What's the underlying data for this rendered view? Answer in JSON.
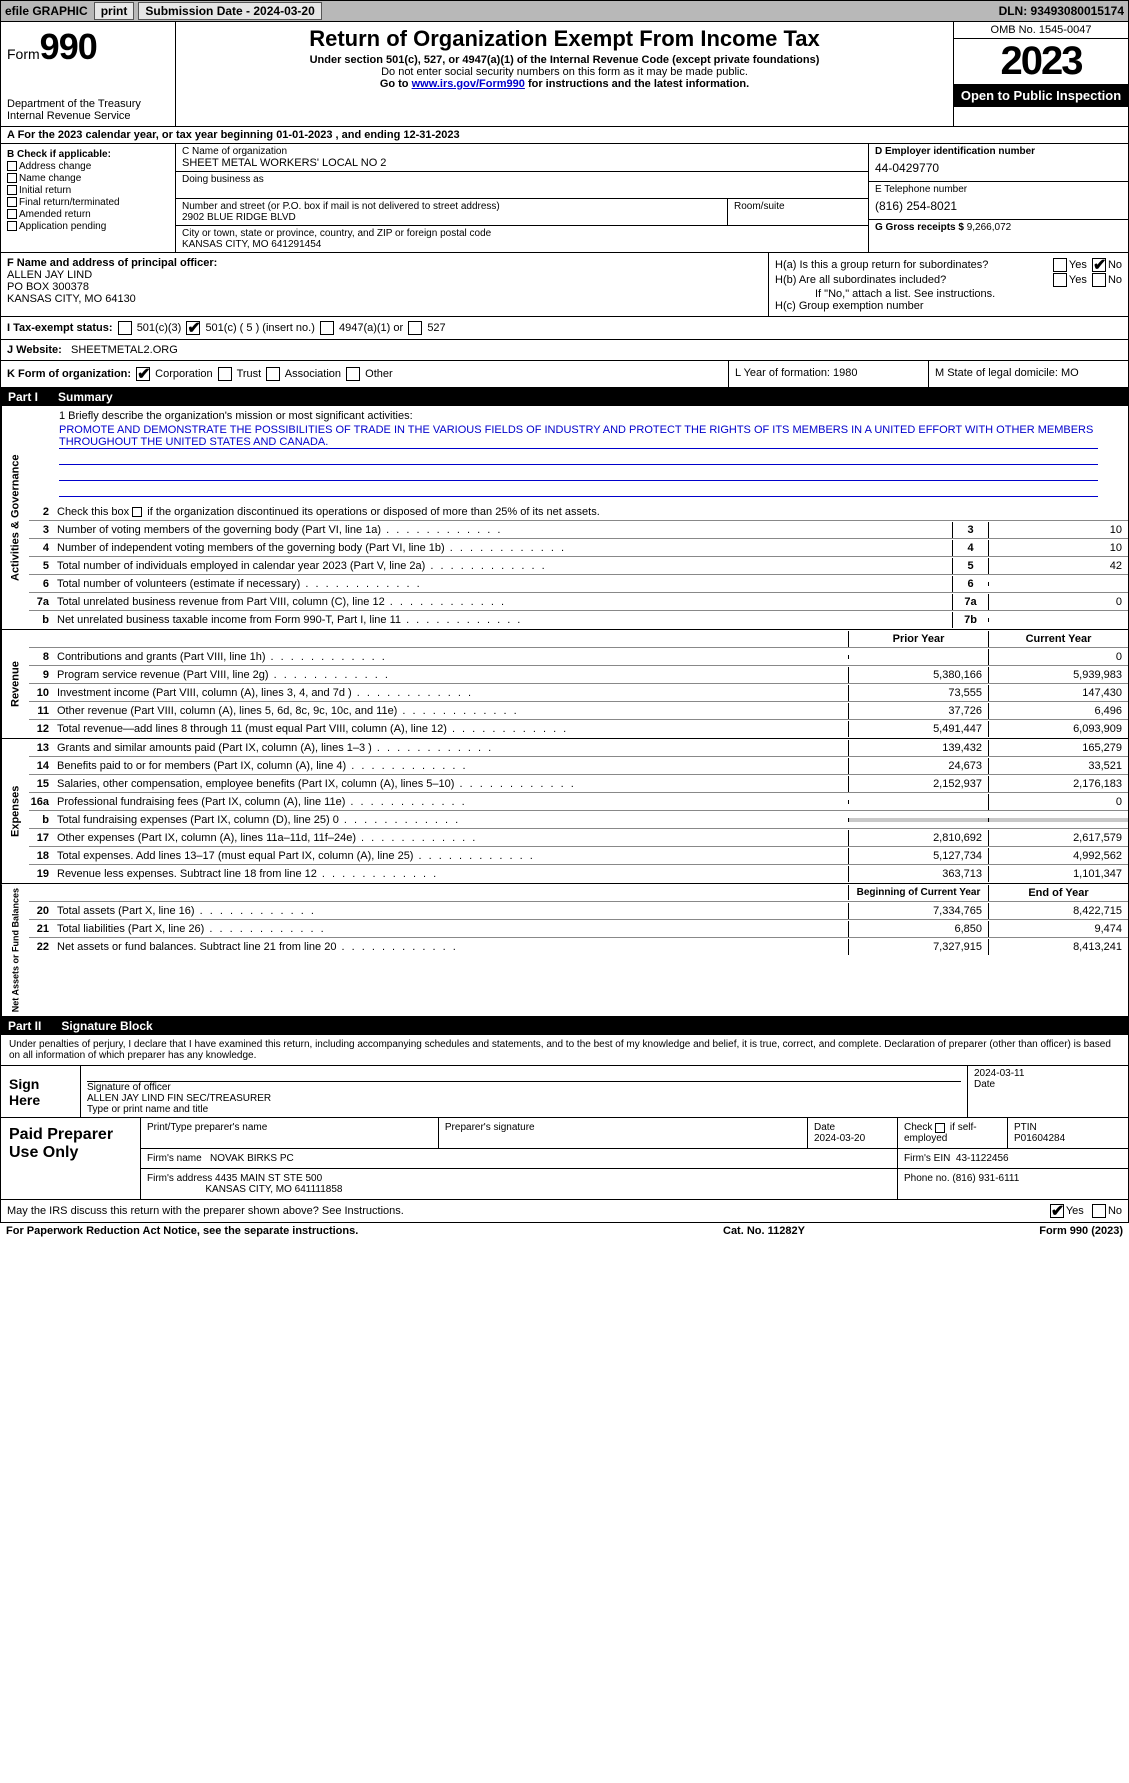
{
  "topbar": {
    "efile": "efile GRAPHIC",
    "print": "print",
    "sub_label": "Submission Date - 2024-03-20",
    "dln_label": "DLN: 93493080015174"
  },
  "header": {
    "form": "Form",
    "form_no": "990",
    "dept": "Department of the Treasury\nInternal Revenue Service",
    "title": "Return of Organization Exempt From Income Tax",
    "sub1": "Under section 501(c), 527, or 4947(a)(1) of the Internal Revenue Code (except private foundations)",
    "sub2": "Do not enter social security numbers on this form as it may be made public.",
    "sub3_pre": "Go to ",
    "sub3_link": "www.irs.gov/Form990",
    "sub3_post": " for instructions and the latest information.",
    "omb": "OMB No. 1545-0047",
    "year": "2023",
    "public": "Open to Public Inspection"
  },
  "rowA": "A  For the 2023 calendar year, or tax year beginning 01-01-2023    , and ending 12-31-2023",
  "boxB": {
    "label": "B Check if applicable:",
    "items": [
      "Address change",
      "Name change",
      "Initial return",
      "Final return/terminated",
      "Amended return",
      "Application pending"
    ]
  },
  "boxC": {
    "name_lbl": "C Name of organization",
    "name": "SHEET METAL WORKERS' LOCAL NO 2",
    "dba_lbl": "Doing business as",
    "addr_lbl": "Number and street (or P.O. box if mail is not delivered to street address)",
    "addr": "2902 BLUE RIDGE BLVD",
    "room_lbl": "Room/suite",
    "city_lbl": "City or town, state or province, country, and ZIP or foreign postal code",
    "city": "KANSAS CITY, MO  641291454"
  },
  "boxD": {
    "lbl": "D Employer identification number",
    "val": "44-0429770"
  },
  "boxE": {
    "lbl": "E Telephone number",
    "val": "(816) 254-8021"
  },
  "boxG": {
    "lbl": "G Gross receipts $",
    "val": "9,266,072"
  },
  "boxF": {
    "lbl": "F  Name and address of principal officer:",
    "name": "ALLEN JAY LIND",
    "addr1": "PO BOX 300378",
    "addr2": "KANSAS CITY, MO  64130"
  },
  "boxH": {
    "ha": "H(a)  Is this a group return for subordinates?",
    "hb": "H(b)  Are all subordinates included?",
    "hb_note": "If \"No,\" attach a list. See instructions.",
    "hc": "H(c)  Group exemption number",
    "yes": "Yes",
    "no": "No"
  },
  "rowI": {
    "lbl": "I    Tax-exempt status:",
    "o1": "501(c)(3)",
    "o2": "501(c) ( 5 ) (insert no.)",
    "o3": "4947(a)(1) or",
    "o4": "527"
  },
  "rowJ": {
    "lbl": "J    Website:",
    "val": "SHEETMETAL2.ORG"
  },
  "rowK": {
    "lbl": "K Form of organization:",
    "o1": "Corporation",
    "o2": "Trust",
    "o3": "Association",
    "o4": "Other",
    "L": "L Year of formation: 1980",
    "M": "M State of legal domicile: MO"
  },
  "part1": {
    "no": "Part I",
    "title": "Summary"
  },
  "mission": {
    "lbl": "1   Briefly describe the organization's mission or most significant activities:",
    "text": "PROMOTE AND DEMONSTRATE THE POSSIBILITIES OF TRADE IN THE VARIOUS FIELDS OF INDUSTRY AND PROTECT THE RIGHTS OF ITS MEMBERS IN A UNITED EFFORT WITH OTHER MEMBERS THROUGHOUT THE UNITED STATES AND CANADA."
  },
  "gov": {
    "vlabel": "Activities & Governance",
    "l2": "Check this box       if the organization discontinued its operations or disposed of more than 25% of its net assets.",
    "lines": [
      {
        "n": "3",
        "d": "Number of voting members of the governing body (Part VI, line 1a)",
        "box": "3",
        "v": "10"
      },
      {
        "n": "4",
        "d": "Number of independent voting members of the governing body (Part VI, line 1b)",
        "box": "4",
        "v": "10"
      },
      {
        "n": "5",
        "d": "Total number of individuals employed in calendar year 2023 (Part V, line 2a)",
        "box": "5",
        "v": "42"
      },
      {
        "n": "6",
        "d": "Total number of volunteers (estimate if necessary)",
        "box": "6",
        "v": ""
      },
      {
        "n": "7a",
        "d": "Total unrelated business revenue from Part VIII, column (C), line 12",
        "box": "7a",
        "v": "0"
      },
      {
        "n": "b",
        "d": "Net unrelated business taxable income from Form 990-T, Part I, line 11",
        "box": "7b",
        "v": ""
      }
    ]
  },
  "rev": {
    "vlabel": "Revenue",
    "hdr_prior": "Prior Year",
    "hdr_curr": "Current Year",
    "lines": [
      {
        "n": "8",
        "d": "Contributions and grants (Part VIII, line 1h)",
        "p": "",
        "c": "0"
      },
      {
        "n": "9",
        "d": "Program service revenue (Part VIII, line 2g)",
        "p": "5,380,166",
        "c": "5,939,983"
      },
      {
        "n": "10",
        "d": "Investment income (Part VIII, column (A), lines 3, 4, and 7d )",
        "p": "73,555",
        "c": "147,430"
      },
      {
        "n": "11",
        "d": "Other revenue (Part VIII, column (A), lines 5, 6d, 8c, 9c, 10c, and 11e)",
        "p": "37,726",
        "c": "6,496"
      },
      {
        "n": "12",
        "d": "Total revenue—add lines 8 through 11 (must equal Part VIII, column (A), line 12)",
        "p": "5,491,447",
        "c": "6,093,909"
      }
    ]
  },
  "exp": {
    "vlabel": "Expenses",
    "lines": [
      {
        "n": "13",
        "d": "Grants and similar amounts paid (Part IX, column (A), lines 1–3 )",
        "p": "139,432",
        "c": "165,279"
      },
      {
        "n": "14",
        "d": "Benefits paid to or for members (Part IX, column (A), line 4)",
        "p": "24,673",
        "c": "33,521"
      },
      {
        "n": "15",
        "d": "Salaries, other compensation, employee benefits (Part IX, column (A), lines 5–10)",
        "p": "2,152,937",
        "c": "2,176,183"
      },
      {
        "n": "16a",
        "d": "Professional fundraising fees (Part IX, column (A), line 11e)",
        "p": "",
        "c": "0"
      },
      {
        "n": "b",
        "d": "Total fundraising expenses (Part IX, column (D), line 25) 0",
        "p": "",
        "c": "",
        "shaded": true
      },
      {
        "n": "17",
        "d": "Other expenses (Part IX, column (A), lines 11a–11d, 11f–24e)",
        "p": "2,810,692",
        "c": "2,617,579"
      },
      {
        "n": "18",
        "d": "Total expenses. Add lines 13–17 (must equal Part IX, column (A), line 25)",
        "p": "5,127,734",
        "c": "4,992,562"
      },
      {
        "n": "19",
        "d": "Revenue less expenses. Subtract line 18 from line 12",
        "p": "363,713",
        "c": "1,101,347"
      }
    ]
  },
  "net": {
    "vlabel": "Net Assets or Fund Balances",
    "hdr_prior": "Beginning of Current Year",
    "hdr_curr": "End of Year",
    "lines": [
      {
        "n": "20",
        "d": "Total assets (Part X, line 16)",
        "p": "7,334,765",
        "c": "8,422,715"
      },
      {
        "n": "21",
        "d": "Total liabilities (Part X, line 26)",
        "p": "6,850",
        "c": "9,474"
      },
      {
        "n": "22",
        "d": "Net assets or fund balances. Subtract line 21 from line 20",
        "p": "7,327,915",
        "c": "8,413,241"
      }
    ]
  },
  "part2": {
    "no": "Part II",
    "title": "Signature Block"
  },
  "sig": {
    "intro": "Under penalties of perjury, I declare that I have examined this return, including accompanying schedules and statements, and to the best of my knowledge and belief, it is true, correct, and complete. Declaration of preparer (other than officer) is based on all information of which preparer has any knowledge.",
    "sign_here": "Sign Here",
    "sig_lbl": "Signature of officer",
    "date_lbl": "Date",
    "date": "2024-03-11",
    "name": "ALLEN JAY LIND  FIN SEC/TREASURER",
    "name_lbl": "Type or print name and title"
  },
  "prep": {
    "label": "Paid Preparer Use Only",
    "h1": "Print/Type preparer's name",
    "h2": "Preparer's signature",
    "h3": "Date",
    "h3v": "2024-03-20",
    "h4_pre": "Check",
    "h4_post": "if self-employed",
    "h5": "PTIN",
    "h5v": "P01604284",
    "firm_lbl": "Firm's name",
    "firm": "NOVAK BIRKS PC",
    "ein_lbl": "Firm's EIN",
    "ein": "43-1122456",
    "addr_lbl": "Firm's address",
    "addr1": "4435 MAIN ST STE 500",
    "addr2": "KANSAS CITY, MO  641111858",
    "phone_lbl": "Phone no.",
    "phone": "(816) 931-6111"
  },
  "discuss": {
    "txt": "May the IRS discuss this return with the preparer shown above? See Instructions.",
    "yes": "Yes",
    "no": "No"
  },
  "footer": {
    "left": "For Paperwork Reduction Act Notice, see the separate instructions.",
    "mid": "Cat. No. 11282Y",
    "right": "Form 990 (2023)"
  }
}
